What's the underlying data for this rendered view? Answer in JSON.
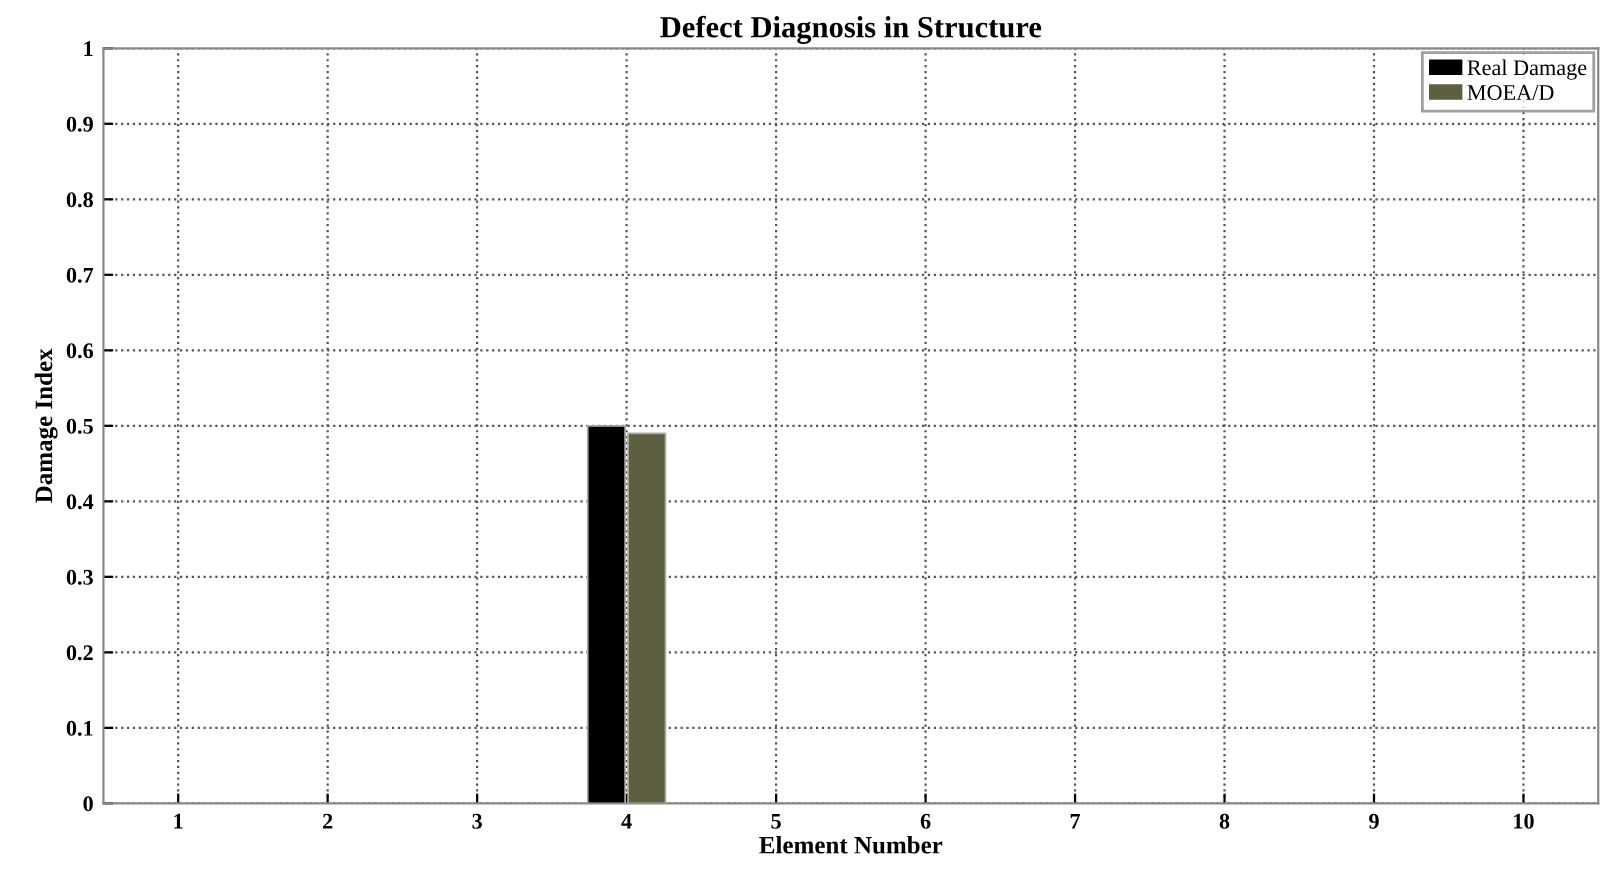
{
  "chart_data": {
    "type": "bar",
    "title": "Defect Diagnosis in Structure",
    "xlabel": "Element Number",
    "ylabel": "Damage Index",
    "categories": [
      "1",
      "2",
      "3",
      "4",
      "5",
      "6",
      "7",
      "8",
      "9",
      "10"
    ],
    "series": [
      {
        "name": "Real Damage",
        "color": "#000000",
        "values": [
          0,
          0,
          0,
          0.5,
          0,
          0,
          0,
          0,
          0,
          0
        ]
      },
      {
        "name": "MOEA/D",
        "color": "#5e5e40",
        "values": [
          0,
          0,
          0,
          0.49,
          0,
          0,
          0,
          0,
          0,
          0
        ]
      }
    ],
    "ylim": [
      0,
      1
    ],
    "yticks": [
      0,
      0.1,
      0.2,
      0.3,
      0.4,
      0.5,
      0.6,
      0.7,
      0.8,
      0.9,
      1
    ],
    "grid": true,
    "legend": "top right"
  }
}
